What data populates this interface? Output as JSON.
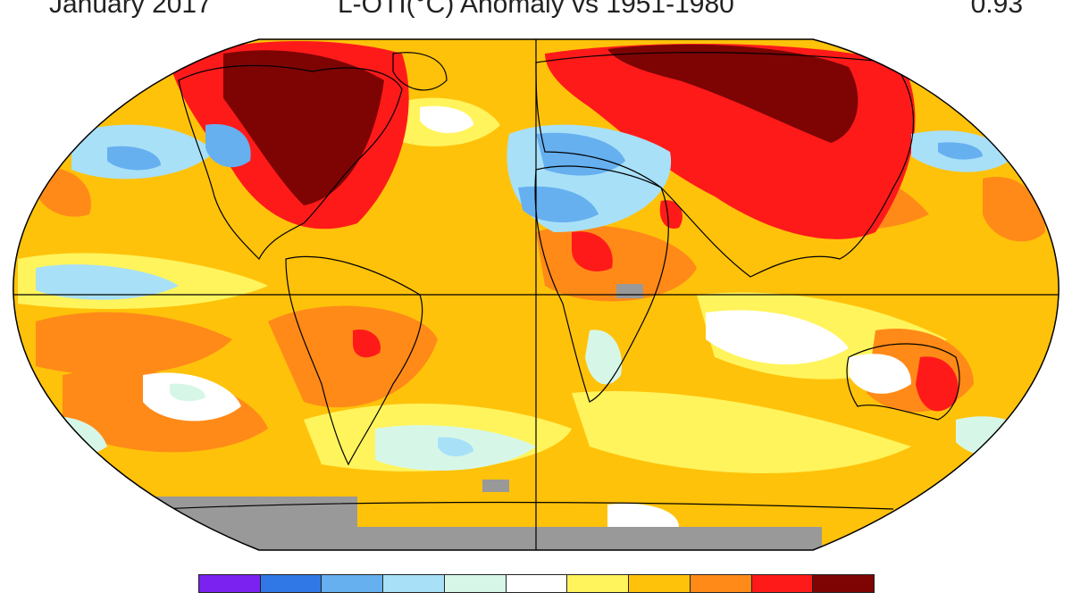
{
  "header": {
    "left": "January 2017",
    "center": "L-OTI(°C) Anomaly vs 1951-1980",
    "right": "0.93"
  },
  "legend": {
    "colors": [
      "#7b22f0",
      "#2f78e6",
      "#66b0f0",
      "#a8e0f8",
      "#d6f7e8",
      "#ffffff",
      "#fff45c",
      "#ffc20a",
      "#ff8a18",
      "#ff1a1a",
      "#7e0404"
    ]
  },
  "map": {
    "projection": "robinson",
    "ocean_base_color": "#ffcc33",
    "land_outline_color": "#000000",
    "no_data_color": "#999999"
  }
}
